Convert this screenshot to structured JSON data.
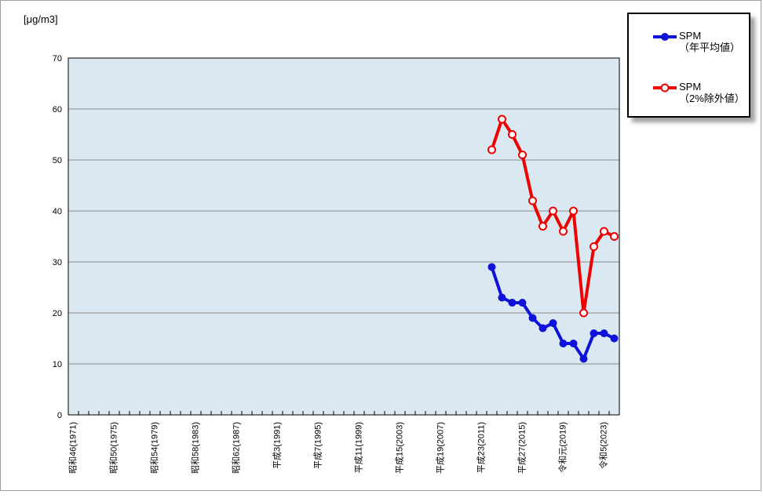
{
  "chart_data": {
    "type": "line",
    "title": "",
    "unit_label": "[μg/m3]",
    "grid": "horizontal",
    "legend_position": "top-right",
    "ylim": [
      0,
      70
    ],
    "y_step": 10,
    "y_tick_labels": [
      "0",
      "10",
      "20",
      "30",
      "40",
      "50",
      "60",
      "70"
    ],
    "x_first_year": 1971,
    "x_last_year": 2024,
    "x_tick_labels": [
      {
        "year": 1971,
        "text": "昭和46(1971)"
      },
      {
        "year": 1975,
        "text": "昭和50(1975)"
      },
      {
        "year": 1979,
        "text": "昭和54(1979)"
      },
      {
        "year": 1983,
        "text": "昭和58(1983)"
      },
      {
        "year": 1987,
        "text": "昭和62(1987)"
      },
      {
        "year": 1991,
        "text": "平成3(1991)"
      },
      {
        "year": 1995,
        "text": "平成7(1995)"
      },
      {
        "year": 1999,
        "text": "平成11(1999)"
      },
      {
        "year": 2003,
        "text": "平成15(2003)"
      },
      {
        "year": 2007,
        "text": "平成19(2007)"
      },
      {
        "year": 2011,
        "text": "平成23(2011)"
      },
      {
        "year": 2015,
        "text": "平成27(2015)"
      },
      {
        "year": 2019,
        "text": "令和元(2019)"
      },
      {
        "year": 2023,
        "text": "令和5(2023)"
      }
    ],
    "series": [
      {
        "name": "SPM（年平均値）",
        "legend_line1": "SPM",
        "legend_line2": "（年平均値）",
        "color": "#0f12d8",
        "marker": "filled-circle",
        "x": [
          2012,
          2013,
          2014,
          2015,
          2016,
          2017,
          2018,
          2019,
          2020,
          2021,
          2022,
          2023,
          2024
        ],
        "values": [
          29,
          23,
          22,
          22,
          19,
          17,
          18,
          14,
          14,
          11,
          16,
          16,
          15
        ]
      },
      {
        "name": "SPM（2%除外値）",
        "legend_line1": "SPM",
        "legend_line2": "（2%除外値）",
        "color": "#ee0000",
        "marker": "open-circle",
        "x": [
          2012,
          2013,
          2014,
          2015,
          2016,
          2017,
          2018,
          2019,
          2020,
          2021,
          2022,
          2023,
          2024
        ],
        "values": [
          52,
          58,
          55,
          51,
          42,
          37,
          40,
          36,
          40,
          20,
          33,
          36,
          35
        ]
      }
    ],
    "colors": {
      "plot_bg": "#d9e8f1",
      "gridline": "#8c8c8c",
      "axis": "#000000",
      "frame_border": "#9e9e9e"
    }
  }
}
